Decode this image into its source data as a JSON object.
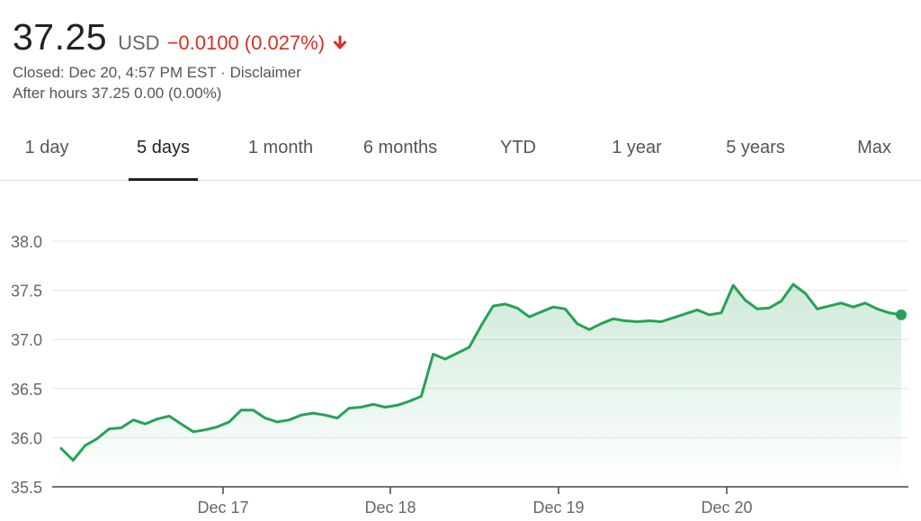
{
  "quote": {
    "price": "37.25",
    "currency": "USD",
    "change": "−0.0100 (0.027%)",
    "closed": "Closed: Dec 20, 4:57 PM EST · Disclaimer",
    "after_hours": "After hours 37.25 0.00 (0.00%)"
  },
  "tabs": [
    {
      "label": "1 day",
      "active": false
    },
    {
      "label": "5 days",
      "active": true
    },
    {
      "label": "1 month",
      "active": false
    },
    {
      "label": "6 months",
      "active": false
    },
    {
      "label": "YTD",
      "active": false
    },
    {
      "label": "1 year",
      "active": false
    },
    {
      "label": "5 years",
      "active": false
    },
    {
      "label": "Max",
      "active": false
    }
  ],
  "colors": {
    "line": "#27a158",
    "down": "#d93025",
    "grid": "#e6e6e6",
    "axis_text": "#666666"
  },
  "chart_data": {
    "type": "line",
    "y_ticks": [
      "38.0",
      "37.5",
      "37.0",
      "36.5",
      "36.0",
      "35.5"
    ],
    "ylim": [
      35.5,
      38.0
    ],
    "x_tick_labels": [
      "Dec 17",
      "Dec 18",
      "Dec 19",
      "Dec 20"
    ],
    "grid": true,
    "series": [
      {
        "values": [
          35.89,
          35.77,
          35.92,
          35.99,
          36.09,
          36.1,
          36.18,
          36.14,
          36.19,
          36.22,
          36.14,
          36.06,
          36.08,
          36.11,
          36.16,
          36.28,
          36.28,
          36.2,
          36.16,
          36.18,
          36.23,
          36.25,
          36.23,
          36.2,
          36.3,
          36.31,
          36.34,
          36.31,
          36.33,
          36.37,
          36.42,
          36.85,
          36.8,
          36.86,
          36.92,
          37.14,
          37.34,
          37.36,
          37.32,
          37.23,
          37.28,
          37.33,
          37.31,
          37.16,
          37.1,
          37.16,
          37.21,
          37.19,
          37.18,
          37.19,
          37.18,
          37.22,
          37.26,
          37.3,
          37.25,
          37.27,
          37.55,
          37.4,
          37.31,
          37.32,
          37.39,
          37.56,
          37.47,
          37.31,
          37.34,
          37.37,
          37.33,
          37.37,
          37.31,
          37.27,
          37.25
        ]
      }
    ]
  }
}
